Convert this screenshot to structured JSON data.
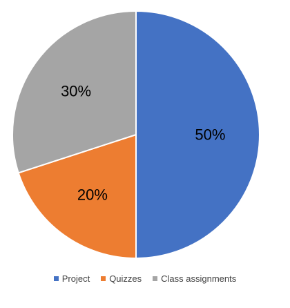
{
  "chart_data": {
    "type": "pie",
    "title": "",
    "slices": [
      {
        "name": "Project",
        "value": 50,
        "label": "50%",
        "color": "#4472C4"
      },
      {
        "name": "Quizzes",
        "value": 20,
        "label": "20%",
        "color": "#ED7D31"
      },
      {
        "name": "Class assignments",
        "value": 30,
        "label": "30%",
        "color": "#A5A5A5"
      }
    ],
    "start_angle_deg": 0,
    "direction": "clockwise",
    "legend_position": "bottom"
  }
}
